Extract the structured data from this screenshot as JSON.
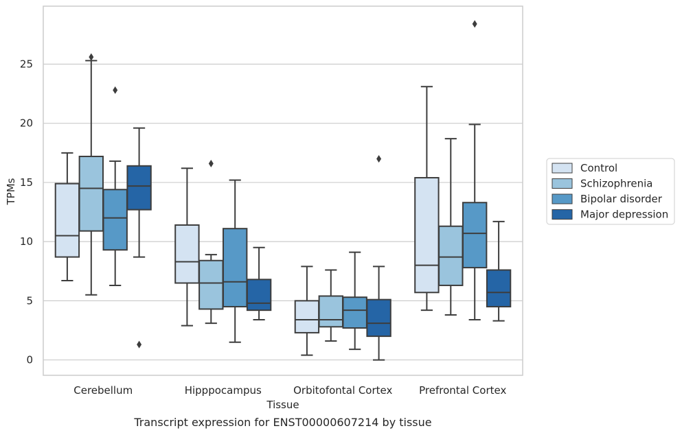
{
  "figure": {
    "caption": "Transcript expression for ENST00000607214 by tissue"
  },
  "chart_data": {
    "type": "box",
    "xlabel": "Tissue",
    "ylabel": "TPMs",
    "ylim": [
      -1.3,
      29.9
    ],
    "yticks": [
      0,
      5,
      10,
      15,
      20,
      25
    ],
    "grid": true,
    "legend_placement": "right, outside plot",
    "categories": [
      "Cerebellum",
      "Hipppocampus",
      "Orbitofontal Cortex",
      "Prefrontal Cortex"
    ],
    "series": [
      {
        "name": "Control",
        "color": "#d4e3f2",
        "boxes": [
          {
            "whisker_low": 6.7,
            "q1": 8.7,
            "median": 10.5,
            "q3": 14.9,
            "whisker_high": 17.5,
            "outliers": []
          },
          {
            "whisker_low": 2.9,
            "q1": 6.5,
            "median": 8.3,
            "q3": 11.4,
            "whisker_high": 16.2,
            "outliers": []
          },
          {
            "whisker_low": 0.4,
            "q1": 2.3,
            "median": 3.4,
            "q3": 5.0,
            "whisker_high": 7.9,
            "outliers": []
          },
          {
            "whisker_low": 4.2,
            "q1": 5.7,
            "median": 8.0,
            "q3": 15.4,
            "whisker_high": 23.1,
            "outliers": []
          }
        ]
      },
      {
        "name": "Schizophrenia",
        "color": "#9ac4dd",
        "boxes": [
          {
            "whisker_low": 5.5,
            "q1": 10.9,
            "median": 14.5,
            "q3": 17.2,
            "whisker_high": 25.3,
            "outliers": [
              25.6
            ]
          },
          {
            "whisker_low": 3.1,
            "q1": 4.3,
            "median": 6.5,
            "q3": 8.4,
            "whisker_high": 8.9,
            "outliers": [
              16.6
            ]
          },
          {
            "whisker_low": 1.6,
            "q1": 2.8,
            "median": 3.4,
            "q3": 5.4,
            "whisker_high": 7.6,
            "outliers": []
          },
          {
            "whisker_low": 3.8,
            "q1": 6.3,
            "median": 8.7,
            "q3": 11.3,
            "whisker_high": 18.7,
            "outliers": []
          }
        ]
      },
      {
        "name": "Bipolar disorder",
        "color": "#5799c7",
        "boxes": [
          {
            "whisker_low": 6.3,
            "q1": 9.3,
            "median": 12.0,
            "q3": 14.4,
            "whisker_high": 16.8,
            "outliers": [
              22.8
            ]
          },
          {
            "whisker_low": 1.5,
            "q1": 4.5,
            "median": 6.6,
            "q3": 11.1,
            "whisker_high": 15.2,
            "outliers": []
          },
          {
            "whisker_low": 0.9,
            "q1": 2.7,
            "median": 4.2,
            "q3": 5.3,
            "whisker_high": 9.1,
            "outliers": []
          },
          {
            "whisker_low": 3.4,
            "q1": 7.8,
            "median": 10.7,
            "q3": 13.3,
            "whisker_high": 19.9,
            "outliers": [
              28.4
            ]
          }
        ]
      },
      {
        "name": "Major depression",
        "color": "#2565a6",
        "boxes": [
          {
            "whisker_low": 8.7,
            "q1": 12.7,
            "median": 14.7,
            "q3": 16.4,
            "whisker_high": 19.6,
            "outliers": [
              1.3
            ]
          },
          {
            "whisker_low": 3.4,
            "q1": 4.2,
            "median": 4.8,
            "q3": 6.8,
            "whisker_high": 9.5,
            "outliers": []
          },
          {
            "whisker_low": 0.0,
            "q1": 2.0,
            "median": 3.1,
            "q3": 5.1,
            "whisker_high": 7.9,
            "outliers": [
              17.0
            ]
          },
          {
            "whisker_low": 3.3,
            "q1": 4.5,
            "median": 5.7,
            "q3": 7.6,
            "whisker_high": 11.7,
            "outliers": []
          }
        ]
      }
    ]
  }
}
